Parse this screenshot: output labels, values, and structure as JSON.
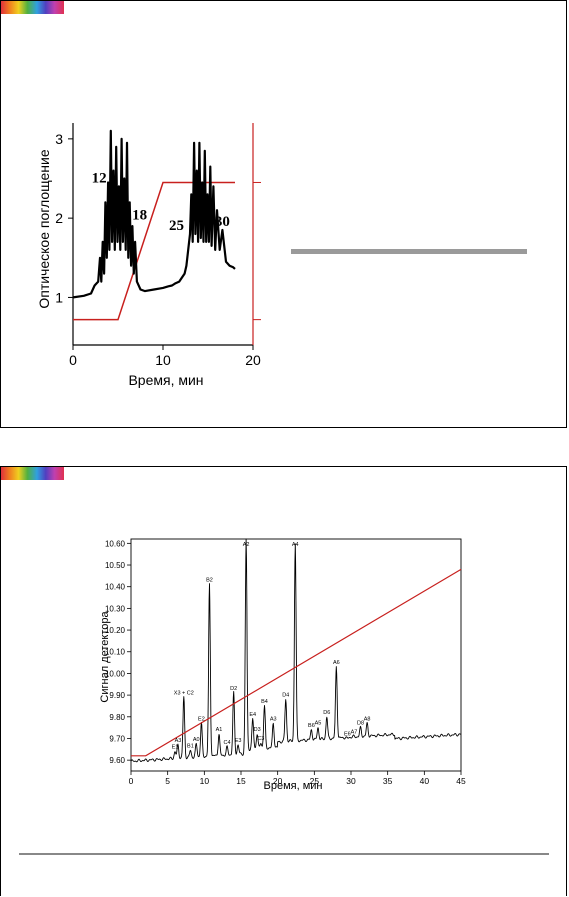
{
  "colors": {
    "trace": "#000000",
    "gradient": "#c8201e",
    "bar": "#9a9a9a"
  },
  "chart_data": [
    {
      "type": "line",
      "xlabel": "Время, мин",
      "ylabel": "Оптическое поглощение",
      "xlim": [
        0,
        20
      ],
      "ylim": [
        0.4,
        3.2
      ],
      "xticks": [
        "0",
        "10",
        "20"
      ],
      "yticks": [
        "1",
        "2",
        "3"
      ],
      "annotations": [
        {
          "text": "12",
          "x": 2.9,
          "y": 2.45
        },
        {
          "text": "18",
          "x": 7.4,
          "y": 1.98
        },
        {
          "text": "25",
          "x": 11.5,
          "y": 1.85
        },
        {
          "text": "30",
          "x": 16.6,
          "y": 1.9
        }
      ],
      "series": [
        {
          "x": [
            0,
            1.2,
            2.0,
            2.4,
            2.8,
            3.0,
            3.15,
            3.3,
            3.45,
            3.6,
            3.75,
            3.9,
            4.05,
            4.2,
            4.35,
            4.5,
            4.65,
            4.8,
            4.95,
            5.1,
            5.25,
            5.4,
            5.55,
            5.7,
            5.85,
            6.0,
            6.15,
            6.3,
            6.45,
            6.6,
            6.75,
            6.9,
            7.1,
            7.5,
            8.0,
            9.0,
            10.0,
            10.6,
            11.0,
            11.4,
            11.8,
            12.1,
            12.4,
            12.6,
            12.8,
            13.0,
            13.15,
            13.3,
            13.45,
            13.6,
            13.75,
            13.9,
            14.05,
            14.2,
            14.35,
            14.5,
            14.65,
            14.8,
            14.95,
            15.1,
            15.25,
            15.4,
            15.6,
            15.8,
            16.0,
            16.3,
            16.6,
            17.0,
            17.4,
            17.8,
            18.0
          ],
          "values": [
            1.0,
            1.02,
            1.05,
            1.15,
            1.2,
            1.5,
            1.2,
            1.7,
            1.3,
            2.2,
            1.5,
            2.45,
            1.6,
            3.1,
            1.7,
            2.6,
            1.6,
            2.9,
            1.7,
            2.4,
            1.6,
            3.0,
            1.7,
            2.5,
            1.6,
            2.95,
            1.5,
            2.2,
            1.4,
            1.9,
            1.3,
            1.7,
            1.2,
            1.1,
            1.08,
            1.1,
            1.12,
            1.14,
            1.15,
            1.18,
            1.2,
            1.25,
            1.3,
            1.4,
            1.6,
            1.8,
            2.3,
            1.7,
            2.95,
            1.8,
            2.6,
            1.7,
            2.95,
            1.75,
            2.45,
            1.7,
            2.85,
            1.7,
            2.3,
            1.7,
            2.65,
            1.65,
            2.4,
            1.6,
            2.1,
            1.6,
            1.85,
            1.45,
            1.4,
            1.38,
            1.36
          ]
        }
      ],
      "gradient_line": {
        "x": [
          0,
          5,
          10,
          18
        ],
        "values": [
          0.72,
          0.72,
          2.45,
          2.45
        ]
      },
      "right_axis": {
        "ylim": [
          0.4,
          3.2
        ],
        "ticks": [
          0.72,
          2.45
        ]
      }
    },
    {
      "type": "line",
      "xlabel": "Время, мин",
      "ylabel": "Сигнал детектора",
      "xlim": [
        0,
        45
      ],
      "ylim": [
        9.55,
        10.62
      ],
      "xticks": [
        "0",
        "5",
        "10",
        "15",
        "20",
        "25",
        "30",
        "35",
        "40",
        "45"
      ],
      "yticks": [
        "9.60",
        "9.70",
        "9.80",
        "9.90",
        "10.00",
        "10.10",
        "10.20",
        "10.30",
        "10.40",
        "10.50",
        "10.60"
      ],
      "peaks": [
        {
          "label": "E1",
          "x": 6.0,
          "y": 9.64
        },
        {
          "label": "A3",
          "x": 6.4,
          "y": 9.67
        },
        {
          "label": "X3 + C2",
          "x": 7.2,
          "y": 9.89
        },
        {
          "label": "B1",
          "x": 8.1,
          "y": 9.645
        },
        {
          "label": "A0",
          "x": 8.9,
          "y": 9.675
        },
        {
          "label": "E2",
          "x": 9.6,
          "y": 9.77
        },
        {
          "label": "B2",
          "x": 10.7,
          "y": 10.41
        },
        {
          "label": "A1",
          "x": 12.0,
          "y": 9.72
        },
        {
          "label": "C4",
          "x": 13.1,
          "y": 9.66
        },
        {
          "label": "D2",
          "x": 14.0,
          "y": 9.91
        },
        {
          "label": "E3",
          "x": 14.6,
          "y": 9.67
        },
        {
          "label": "A2",
          "x": 15.7,
          "y": 10.62
        },
        {
          "label": "E4",
          "x": 16.6,
          "y": 9.79
        },
        {
          "label": "D3",
          "x": 17.2,
          "y": 9.72
        },
        {
          "label": "C3",
          "x": 17.7,
          "y": 9.68
        },
        {
          "label": "B4",
          "x": 18.2,
          "y": 9.85
        },
        {
          "label": "A3",
          "x": 19.4,
          "y": 9.77
        },
        {
          "label": "D4",
          "x": 21.1,
          "y": 9.88
        },
        {
          "label": "A4",
          "x": 22.4,
          "y": 10.6
        },
        {
          "label": "B6",
          "x": 24.6,
          "y": 9.74
        },
        {
          "label": "A5",
          "x": 25.5,
          "y": 9.75
        },
        {
          "label": "D6",
          "x": 26.7,
          "y": 9.8
        },
        {
          "label": "A6",
          "x": 28.0,
          "y": 10.03
        },
        {
          "label": "E6",
          "x": 29.5,
          "y": 9.7
        },
        {
          "label": "A7",
          "x": 30.4,
          "y": 9.71
        },
        {
          "label": "D8",
          "x": 31.3,
          "y": 9.75
        },
        {
          "label": "A8",
          "x": 32.2,
          "y": 9.77
        }
      ],
      "gradient_line": {
        "x": [
          0,
          2,
          45
        ],
        "values": [
          9.62,
          9.62,
          10.48
        ]
      }
    }
  ]
}
